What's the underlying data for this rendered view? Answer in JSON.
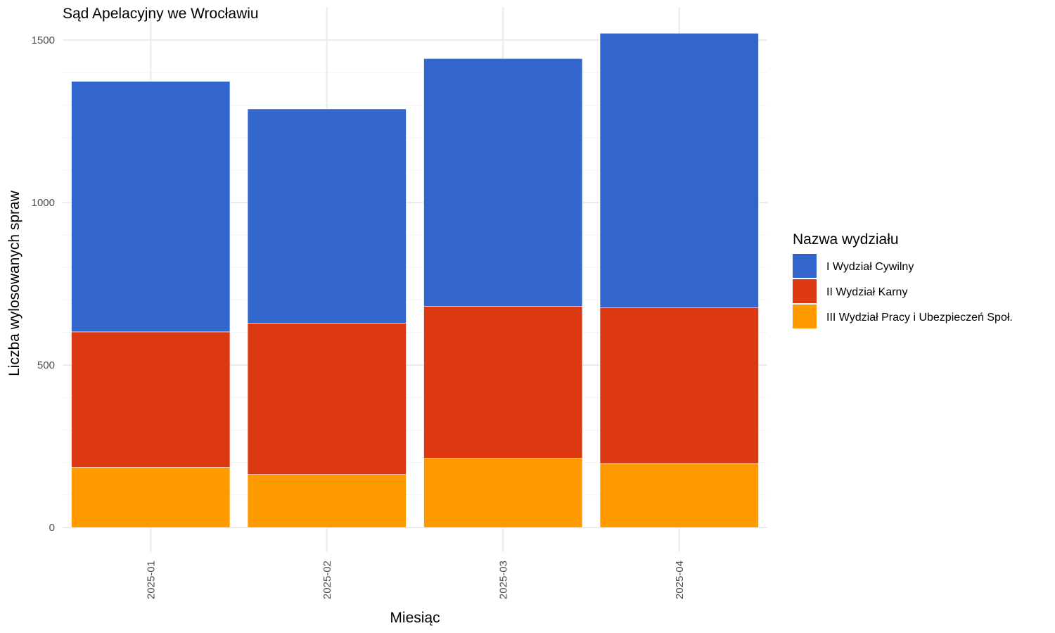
{
  "chart_data": {
    "type": "bar",
    "stacked": true,
    "title": "Sąd Apelacyjny we Wrocławiu",
    "xlabel": "Miesiąc",
    "ylabel": "Liczba wylosowanych spraw",
    "categories": [
      "2025-01",
      "2025-02",
      "2025-03",
      "2025-04"
    ],
    "ylim": [
      0,
      1520
    ],
    "yticks": [
      0,
      500,
      1000,
      1500
    ],
    "grid": true,
    "legend": {
      "title": "Nazwa wydziału",
      "position": "right"
    },
    "series": [
      {
        "name": "III Wydział Pracy i Ubezpieczeń Społ.",
        "color": "#FF9900",
        "values": [
          185,
          163,
          213,
          197
        ]
      },
      {
        "name": "II Wydział Karny",
        "color": "#DC3912",
        "values": [
          417,
          466,
          468,
          479
        ]
      },
      {
        "name": "I Wydział Cywilny",
        "color": "#3366CC",
        "values": [
          771,
          659,
          762,
          845
        ]
      }
    ],
    "legend_order": [
      "I Wydział Cywilny",
      "II Wydział Karny",
      "III Wydział Pracy i Ubezpieczeń Społ."
    ]
  }
}
